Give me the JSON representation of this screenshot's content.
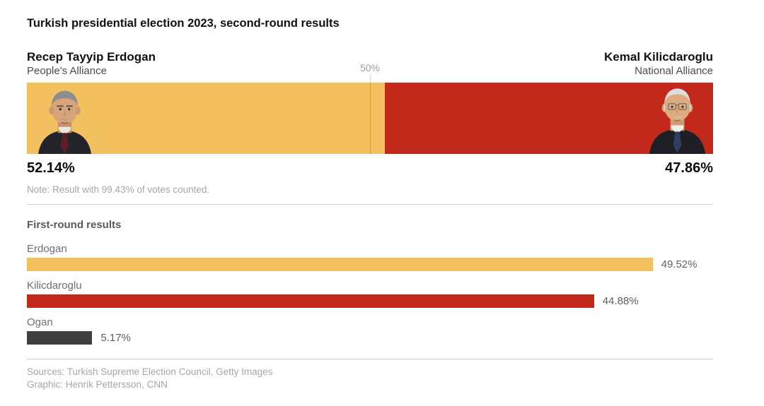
{
  "chart_data": [
    {
      "type": "bar",
      "subtype": "stacked-horizontal-head-to-head",
      "title": "Turkish presidential election 2023, second-round results",
      "candidates": [
        {
          "name": "Recep Tayyip Erdogan",
          "party": "People's Alliance",
          "value": 52.14,
          "value_label": "52.14%",
          "color": "#f2c05e"
        },
        {
          "name": "Kemal Kilicdaroglu",
          "party": "National Alliance",
          "value": 47.86,
          "value_label": "47.86%",
          "color": "#c2291b"
        }
      ],
      "xlim": [
        0,
        100
      ],
      "gridline": {
        "value": 50,
        "label": "50%"
      },
      "note": "Note: Result with 99.43% of votes counted.",
      "legend": "none",
      "grid": false
    },
    {
      "type": "bar",
      "subtype": "horizontal",
      "title": "First-round results",
      "categories": [
        "Erdogan",
        "Kilicdaroglu",
        "Ogan"
      ],
      "values": [
        49.52,
        44.88,
        5.17
      ],
      "value_labels": [
        "49.52%",
        "44.88%",
        "5.17%"
      ],
      "colors": [
        "#f2c05e",
        "#c2291b",
        "#3f3f3f"
      ],
      "xlim": [
        0,
        54.3
      ],
      "legend": "none",
      "grid": false
    }
  ],
  "footer": {
    "sources": "Sources: Turkish Supreme Election Council, Getty Images",
    "credit": "Graphic: Henrik Pettersson, CNN"
  }
}
